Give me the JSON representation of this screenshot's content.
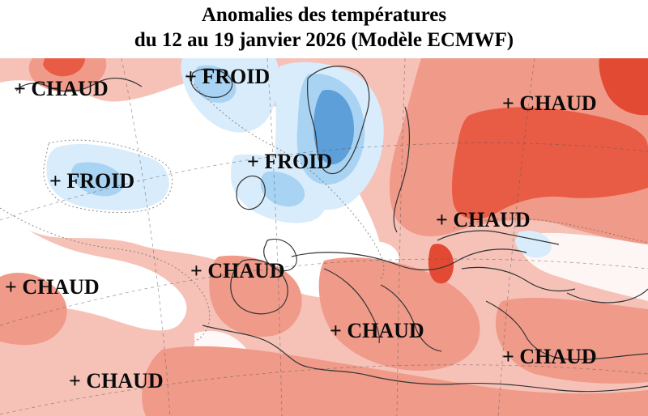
{
  "title": {
    "line1": "Anomalies des températures",
    "line2": "du 12 au 19 janvier 2026 (Modèle ECMWF)"
  },
  "colors": {
    "warm_light": "#f6c2b8",
    "warm_mid": "#f09a8a",
    "warm_strong": "#e85c45",
    "warm_deep": "#e24a33",
    "neutral": "#ffffff",
    "cold_light": "#d8ecfb",
    "cold_mid": "#a9d3f3",
    "cold_strong": "#5d9fd9"
  },
  "labels": [
    {
      "id": "chaud-greenland",
      "text": "+ CHAUD"
    },
    {
      "id": "froid-iceland",
      "text": "+ FROID"
    },
    {
      "id": "chaud-russia",
      "text": "+ CHAUD"
    },
    {
      "id": "froid-atlantic",
      "text": "+ FROID"
    },
    {
      "id": "froid-northsea",
      "text": "+ FROID"
    },
    {
      "id": "chaud-ukraine",
      "text": "+ CHAUD"
    },
    {
      "id": "chaud-biscay",
      "text": "+ CHAUD"
    },
    {
      "id": "chaud-west-atlantic",
      "text": "+ CHAUD"
    },
    {
      "id": "chaud-mediterranean",
      "text": "+ CHAUD"
    },
    {
      "id": "chaud-middle-east",
      "text": "+ CHAUD"
    },
    {
      "id": "chaud-morocco",
      "text": "+ CHAUD"
    }
  ]
}
